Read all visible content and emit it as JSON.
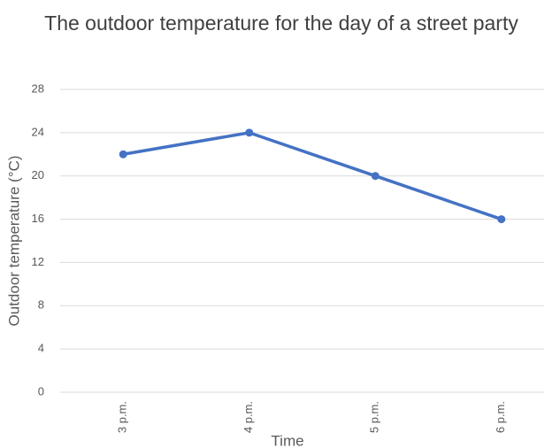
{
  "chart_data": {
    "type": "line",
    "title": "The outdoor temperature for the day of a street party",
    "x_label": "Time",
    "y_label": "Outdoor temperature (°C)",
    "categories": [
      "3 p.m.",
      "4 p.m.",
      "5 p.m.",
      "6 p.m."
    ],
    "series": [
      {
        "name": "Outdoor temperature",
        "color": "#4472c4",
        "values": [
          22,
          24,
          20,
          16
        ]
      }
    ],
    "ylim": [
      0,
      28
    ],
    "yticks": [
      0,
      4,
      8,
      12,
      16,
      20,
      24,
      28
    ],
    "grid": true
  }
}
